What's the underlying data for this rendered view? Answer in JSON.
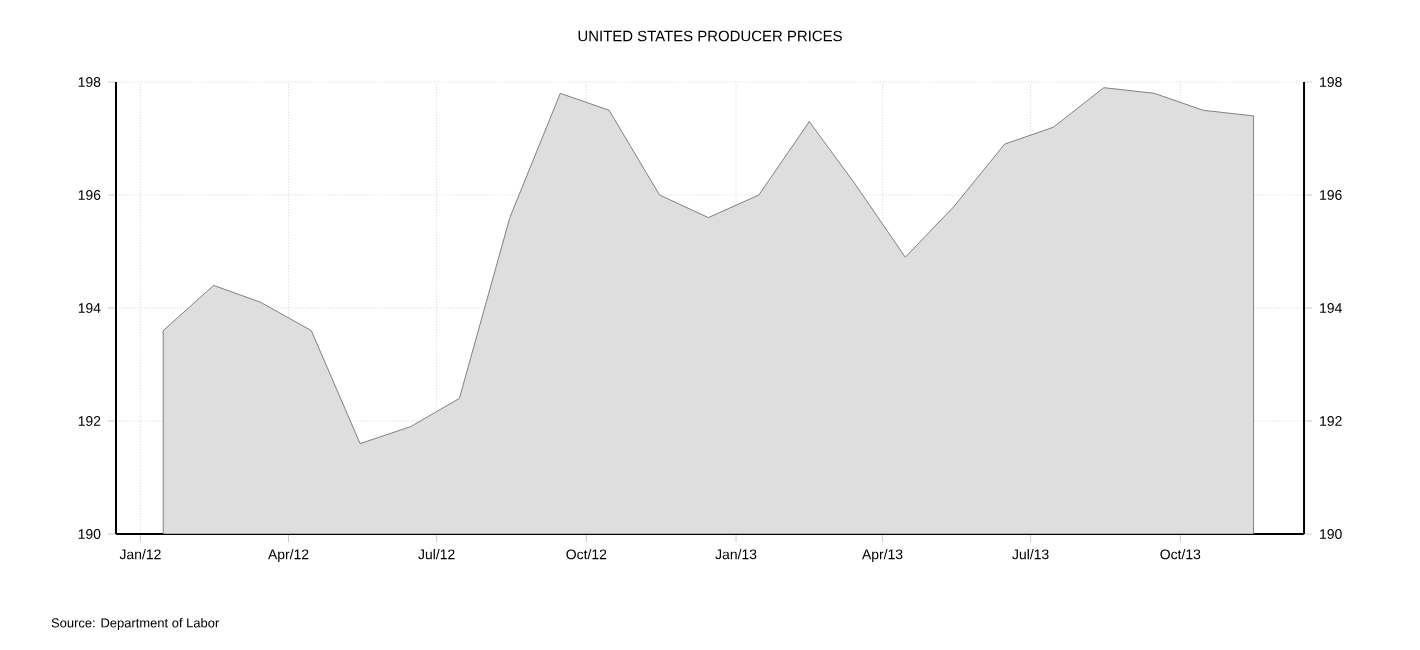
{
  "chart_data": {
    "type": "area",
    "title": "UNITED STATES PRODUCER PRICES",
    "x": [
      "2012-01-15",
      "2012-02-15",
      "2012-03-15",
      "2012-04-15",
      "2012-05-15",
      "2012-06-15",
      "2012-07-15",
      "2012-08-15",
      "2012-09-15",
      "2012-10-15",
      "2012-11-15",
      "2012-12-15",
      "2013-01-15",
      "2013-02-15",
      "2013-03-15",
      "2013-04-15",
      "2013-05-15",
      "2013-06-15",
      "2013-07-15",
      "2013-08-15",
      "2013-09-15",
      "2013-10-15",
      "2013-11-15"
    ],
    "series": [
      {
        "color": "#dedede",
        "values": [
          193.6,
          194.4,
          194.1,
          193.6,
          191.6,
          191.9,
          192.4,
          195.6,
          197.8,
          197.5,
          196.0,
          195.6,
          196.0,
          197.3,
          196.2,
          194.9,
          195.8,
          196.9,
          197.2,
          197.9,
          197.8,
          197.5,
          197.4
        ]
      }
    ],
    "xlim": [
      "2011-12-17",
      "2013-12-16"
    ],
    "xticks": [
      {
        "value": "2012-01-01",
        "label": "Jan/12"
      },
      {
        "value": "2012-04-01",
        "label": "Apr/12"
      },
      {
        "value": "2012-07-01",
        "label": "Jul/12"
      },
      {
        "value": "2012-10-01",
        "label": "Oct/12"
      },
      {
        "value": "2013-01-01",
        "label": "Jan/13"
      },
      {
        "value": "2013-04-01",
        "label": "Apr/13"
      },
      {
        "value": "2013-07-01",
        "label": "Jul/13"
      },
      {
        "value": "2013-10-01",
        "label": "Oct/13"
      }
    ],
    "ylim": [
      190,
      198
    ],
    "yticks": [
      190,
      192,
      194,
      196,
      198
    ],
    "y2lim": [
      190,
      198
    ],
    "y2ticks": [
      190,
      192,
      194,
      196,
      198
    ],
    "grid": true,
    "marker": "none",
    "line_style": "solid",
    "annotations": [
      "Source: Department of Labor"
    ]
  }
}
